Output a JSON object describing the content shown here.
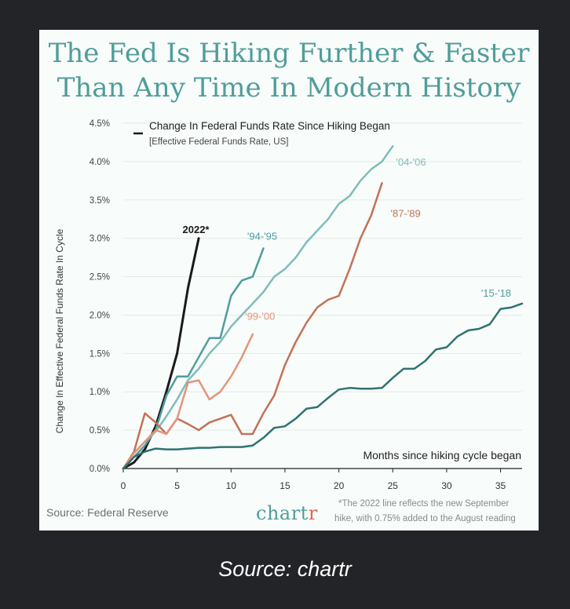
{
  "title_lines": [
    "The Fed Is Hiking Further & Faster",
    "Than Any Time In Modern History"
  ],
  "source_text": "Source: Federal Reserve",
  "brand": {
    "main": "chart",
    "accent": "r"
  },
  "footnote_lines": [
    "*The 2022 line reflects the new September",
    "hike, with 0.75% added to the August reading"
  ],
  "caption": "Source: chartr",
  "colors": {
    "background": "#232428",
    "card": "#f8fcfa",
    "teal_title": "#4f9d9a",
    "black_line": "#1a1a1a",
    "line_9495": "#4f9d9a",
    "line_0406": "#7fbdb9",
    "line_1518": "#2e7370",
    "line_8789": "#c27258",
    "line_9900": "#e3947c",
    "brand_accent": "#e0674d"
  },
  "chart_data": {
    "type": "line",
    "legend": {
      "title": "Change In Federal Funds Rate Since Hiking Began",
      "subtitle": "[Effective Federal Funds Rate, US]"
    },
    "ylabel": "Change In Effective Federal Funds Rate In Cycle",
    "xlabel": "Months since hiking cycle began",
    "xlim": [
      0,
      37
    ],
    "ylim": [
      0,
      4.5
    ],
    "x_ticks": [
      0,
      5,
      10,
      15,
      20,
      25,
      30,
      35
    ],
    "y_ticks": [
      "0.0%",
      "0.5%",
      "1.0%",
      "1.5%",
      "2.0%",
      "2.5%",
      "3.0%",
      "3.5%",
      "4.0%",
      "4.5%"
    ],
    "series": [
      {
        "name": "2022*",
        "color": "#1a1a1a",
        "width": 3,
        "points": [
          [
            0,
            0
          ],
          [
            1,
            0.08
          ],
          [
            2,
            0.25
          ],
          [
            3,
            0.55
          ],
          [
            4,
            1.0
          ],
          [
            5,
            1.5
          ],
          [
            6,
            2.35
          ],
          [
            7,
            3.0
          ]
        ],
        "label_pos": [
          5.5,
          3.07
        ],
        "label_color": "#1a1a1a"
      },
      {
        "name": "'94-'95",
        "color": "#4f9d9a",
        "width": 2.5,
        "points": [
          [
            0,
            0
          ],
          [
            1,
            0.15
          ],
          [
            2,
            0.3
          ],
          [
            3,
            0.5
          ],
          [
            4,
            0.95
          ],
          [
            5,
            1.2
          ],
          [
            6,
            1.2
          ],
          [
            7,
            1.45
          ],
          [
            8,
            1.7
          ],
          [
            9,
            1.7
          ],
          [
            10,
            2.25
          ],
          [
            11,
            2.45
          ],
          [
            12,
            2.5
          ],
          [
            13,
            2.87
          ]
        ],
        "label_pos": [
          11.5,
          2.98
        ],
        "label_color": "#4f9d9a"
      },
      {
        "name": "'04-'06",
        "color": "#7fbdb9",
        "width": 2.5,
        "points": [
          [
            0,
            0
          ],
          [
            1,
            0.2
          ],
          [
            2,
            0.35
          ],
          [
            3,
            0.48
          ],
          [
            4,
            0.68
          ],
          [
            5,
            0.9
          ],
          [
            6,
            1.15
          ],
          [
            7,
            1.3
          ],
          [
            8,
            1.5
          ],
          [
            9,
            1.65
          ],
          [
            10,
            1.85
          ],
          [
            11,
            2.0
          ],
          [
            12,
            2.15
          ],
          [
            13,
            2.3
          ],
          [
            14,
            2.5
          ],
          [
            15,
            2.6
          ],
          [
            16,
            2.75
          ],
          [
            17,
            2.95
          ],
          [
            18,
            3.1
          ],
          [
            19,
            3.25
          ],
          [
            20,
            3.45
          ],
          [
            21,
            3.55
          ],
          [
            22,
            3.75
          ],
          [
            23,
            3.9
          ],
          [
            24,
            4.0
          ],
          [
            25,
            4.2
          ]
        ],
        "label_pos": [
          25.3,
          3.95
        ],
        "label_color": "#7fbdb9"
      },
      {
        "name": "'87-'89",
        "color": "#c27258",
        "width": 2.5,
        "points": [
          [
            0,
            0
          ],
          [
            1,
            0.22
          ],
          [
            2,
            0.72
          ],
          [
            3,
            0.6
          ],
          [
            4,
            0.45
          ],
          [
            5,
            0.65
          ],
          [
            6,
            0.58
          ],
          [
            7,
            0.5
          ],
          [
            8,
            0.6
          ],
          [
            9,
            0.65
          ],
          [
            10,
            0.7
          ],
          [
            11,
            0.45
          ],
          [
            12,
            0.45
          ],
          [
            13,
            0.72
          ],
          [
            14,
            0.95
          ],
          [
            15,
            1.35
          ],
          [
            16,
            1.65
          ],
          [
            17,
            1.9
          ],
          [
            18,
            2.1
          ],
          [
            19,
            2.2
          ],
          [
            20,
            2.25
          ],
          [
            21,
            2.6
          ],
          [
            22,
            3.0
          ],
          [
            23,
            3.3
          ],
          [
            24,
            3.72
          ]
        ],
        "label_pos": [
          24.8,
          3.28
        ],
        "label_color": "#c27258"
      },
      {
        "name": "'99-'00",
        "color": "#e3947c",
        "width": 2.5,
        "points": [
          [
            0,
            0
          ],
          [
            1,
            0.2
          ],
          [
            2,
            0.35
          ],
          [
            3,
            0.5
          ],
          [
            4,
            0.45
          ],
          [
            5,
            0.65
          ],
          [
            6,
            1.12
          ],
          [
            7,
            1.15
          ],
          [
            8,
            0.9
          ],
          [
            9,
            1.0
          ],
          [
            10,
            1.2
          ],
          [
            11,
            1.45
          ],
          [
            12,
            1.75
          ]
        ],
        "label_pos": [
          11.3,
          1.94
        ],
        "label_color": "#e3947c"
      },
      {
        "name": "'15-'18",
        "color": "#2e7370",
        "width": 2.5,
        "points": [
          [
            0,
            0
          ],
          [
            1,
            0.15
          ],
          [
            2,
            0.22
          ],
          [
            3,
            0.26
          ],
          [
            4,
            0.25
          ],
          [
            5,
            0.25
          ],
          [
            6,
            0.26
          ],
          [
            7,
            0.27
          ],
          [
            8,
            0.27
          ],
          [
            9,
            0.28
          ],
          [
            10,
            0.28
          ],
          [
            11,
            0.28
          ],
          [
            12,
            0.3
          ],
          [
            13,
            0.4
          ],
          [
            14,
            0.53
          ],
          [
            15,
            0.55
          ],
          [
            16,
            0.65
          ],
          [
            17,
            0.78
          ],
          [
            18,
            0.8
          ],
          [
            19,
            0.92
          ],
          [
            20,
            1.03
          ],
          [
            21,
            1.05
          ],
          [
            22,
            1.04
          ],
          [
            23,
            1.04
          ],
          [
            24,
            1.05
          ],
          [
            25,
            1.18
          ],
          [
            26,
            1.3
          ],
          [
            27,
            1.3
          ],
          [
            28,
            1.4
          ],
          [
            29,
            1.55
          ],
          [
            30,
            1.58
          ],
          [
            31,
            1.72
          ],
          [
            32,
            1.8
          ],
          [
            33,
            1.82
          ],
          [
            34,
            1.88
          ],
          [
            35,
            2.08
          ],
          [
            36,
            2.1
          ],
          [
            37,
            2.15
          ]
        ],
        "label_pos": [
          33.2,
          2.24
        ],
        "label_color": "#4f9d9a"
      }
    ]
  }
}
